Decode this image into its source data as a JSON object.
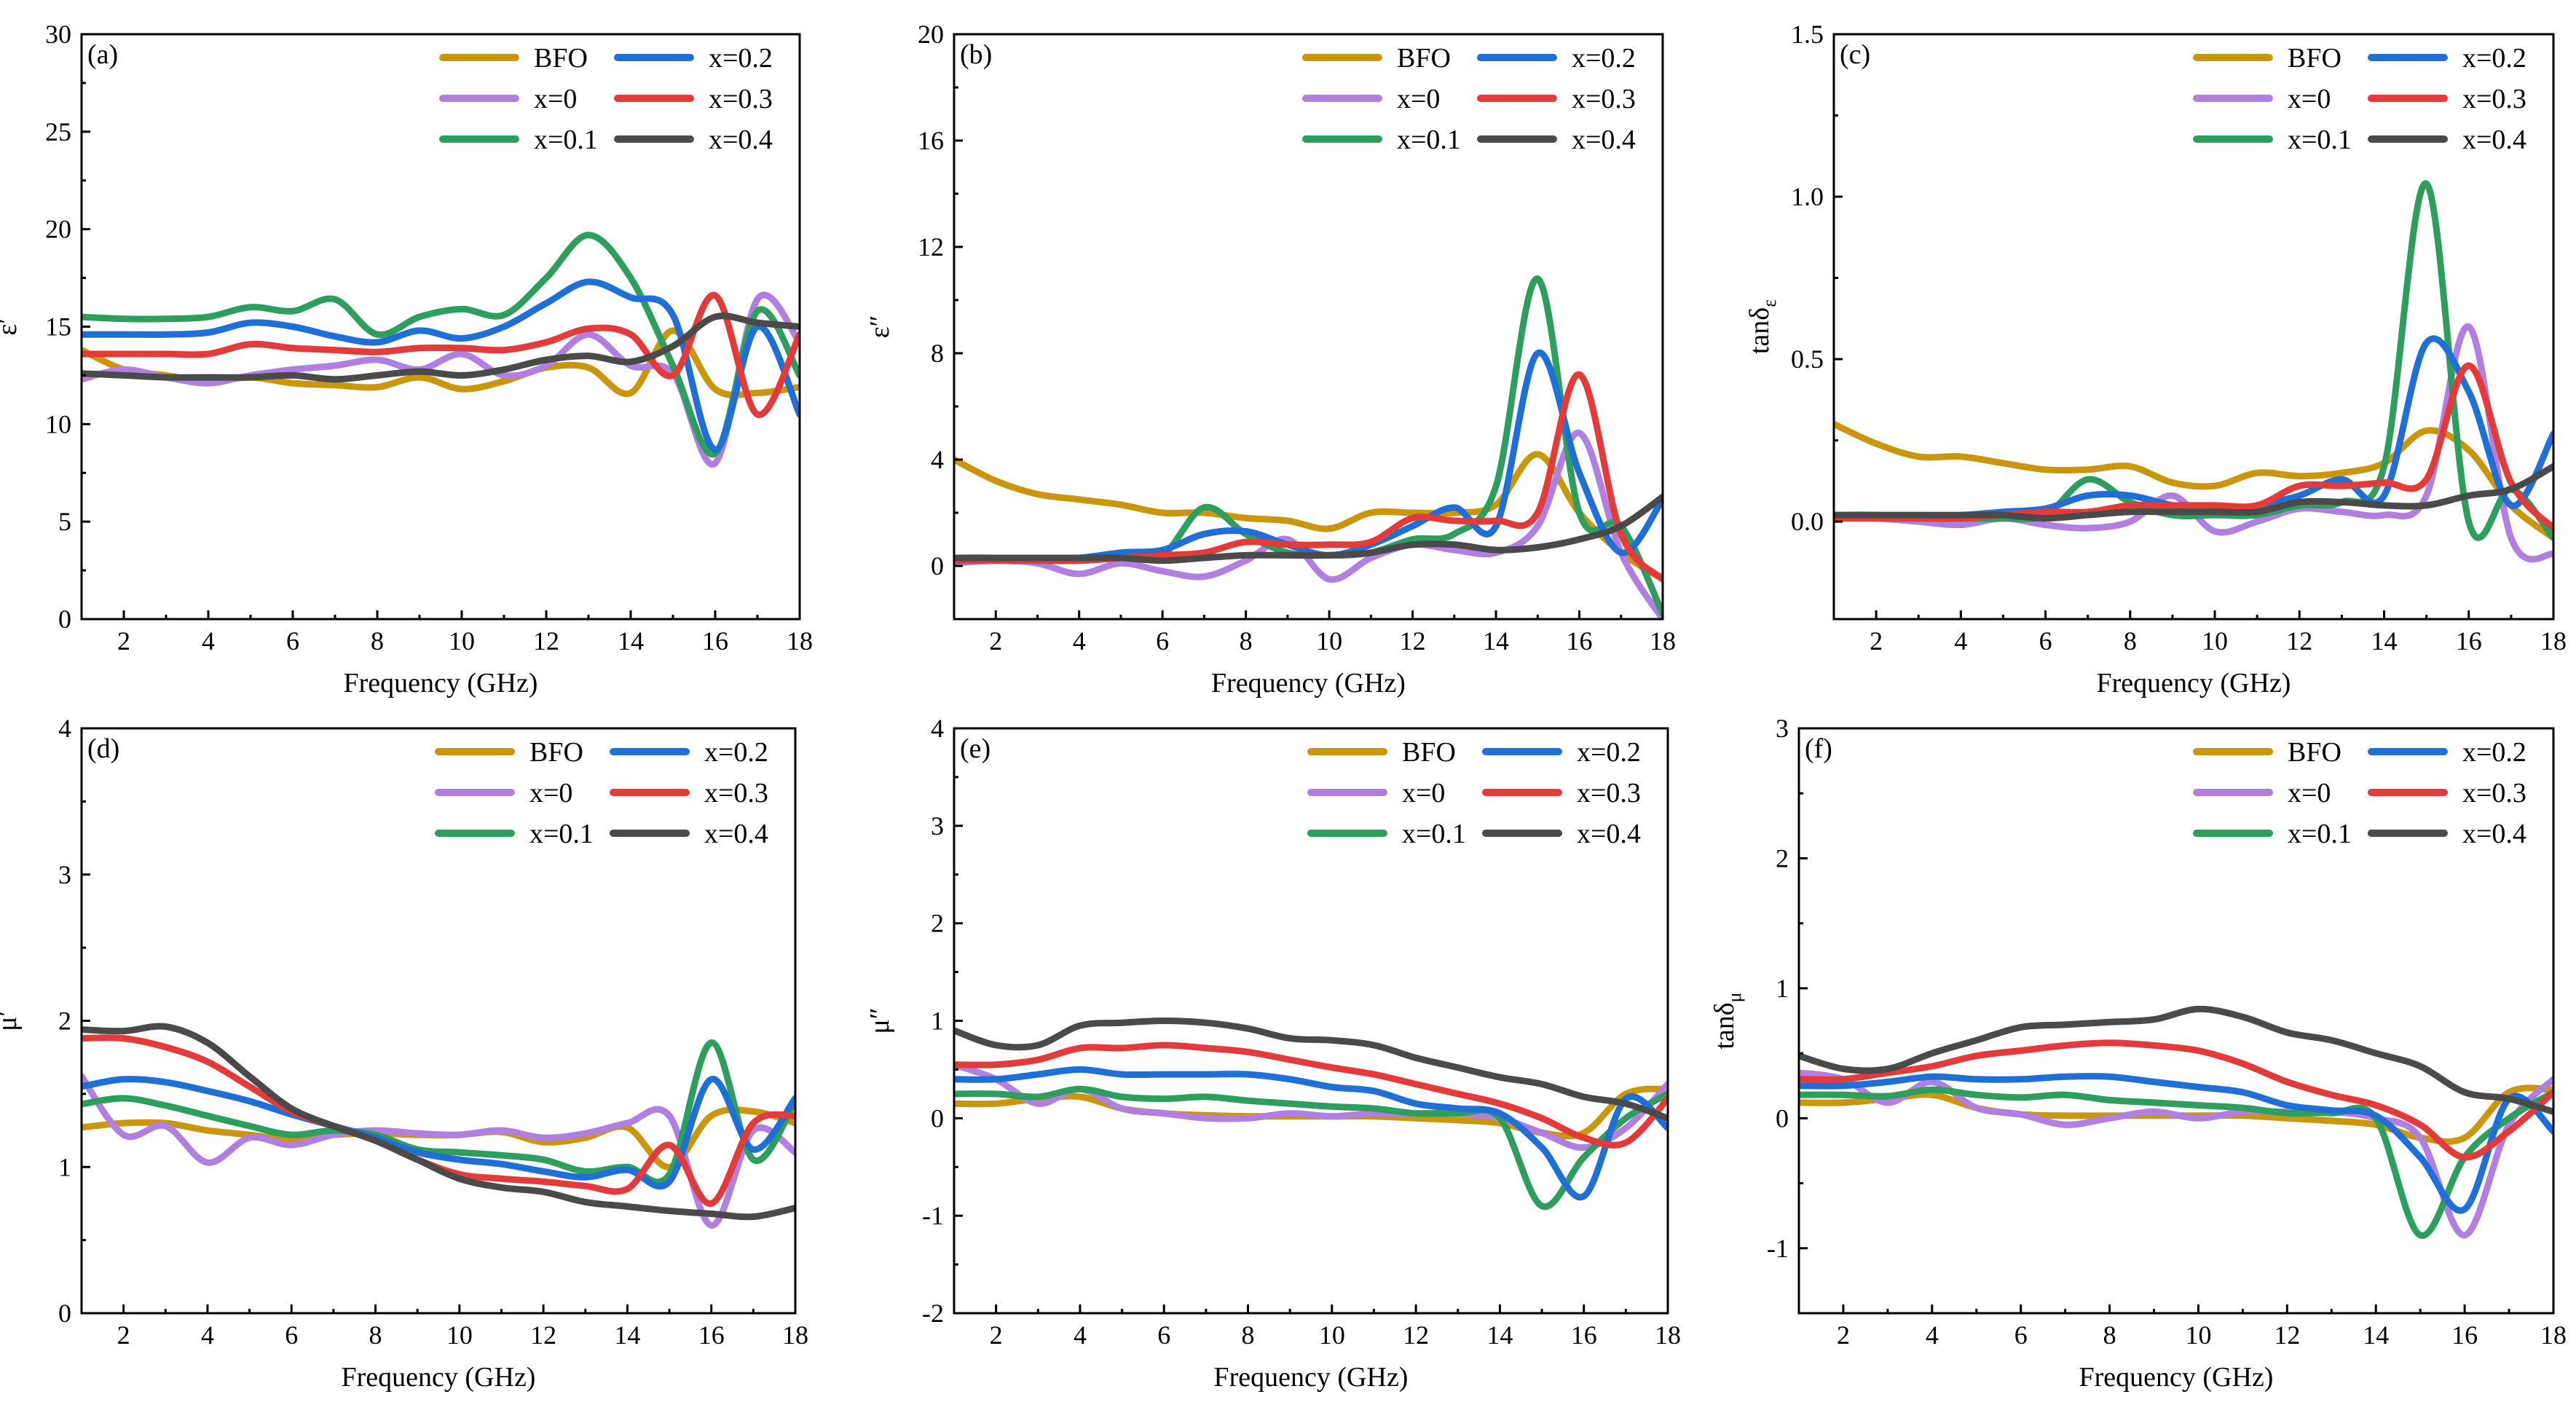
{
  "colors": {
    "BFO": "#c9960e",
    "x=0": "#b07fe0",
    "x=0.1": "#2e9e5e",
    "x=0.2": "#1f6fd6",
    "x=0.3": "#e33a3a",
    "x=0.4": "#4a4a4a"
  },
  "chart_data": [
    {
      "type": "line",
      "panel": "(a)",
      "xlabel": "Frequency (GHz)",
      "ylabel": "ε′",
      "xlim": [
        1,
        18
      ],
      "ylim": [
        0,
        30
      ],
      "xticks": [
        2,
        4,
        6,
        8,
        10,
        12,
        14,
        16,
        18
      ],
      "yticks": [
        0,
        5,
        10,
        15,
        20,
        25,
        30
      ],
      "legend": [
        "BFO",
        "x=0.2",
        "x=0",
        "x=0.3",
        "x=0.1",
        "x=0.4"
      ],
      "x": [
        1,
        2,
        3,
        4,
        5,
        6,
        7,
        8,
        9,
        10,
        11,
        12,
        13,
        14,
        15,
        16,
        17,
        18
      ],
      "series": [
        {
          "name": "BFO",
          "values": [
            13.8,
            12.8,
            12.5,
            12.2,
            12.4,
            12.1,
            12.0,
            11.9,
            12.4,
            11.8,
            12.2,
            12.9,
            12.9,
            11.6,
            14.8,
            11.8,
            11.6,
            11.9
          ]
        },
        {
          "name": "x=0",
          "values": [
            12.3,
            12.8,
            12.4,
            12.1,
            12.5,
            12.8,
            13.0,
            13.3,
            12.8,
            13.6,
            12.5,
            13.0,
            14.6,
            13.0,
            12.6,
            8.0,
            16.4,
            14.2
          ]
        },
        {
          "name": "x=0.1",
          "values": [
            15.5,
            15.4,
            15.4,
            15.5,
            16.0,
            15.8,
            16.4,
            14.6,
            15.5,
            15.9,
            15.6,
            17.5,
            19.7,
            17.5,
            13.0,
            8.5,
            15.8,
            12.5
          ]
        },
        {
          "name": "x=0.2",
          "values": [
            14.6,
            14.6,
            14.6,
            14.7,
            15.2,
            15.0,
            14.5,
            14.2,
            14.8,
            14.4,
            15.0,
            16.2,
            17.3,
            16.5,
            15.6,
            8.7,
            15.0,
            10.5
          ]
        },
        {
          "name": "x=0.3",
          "values": [
            13.6,
            13.6,
            13.6,
            13.6,
            14.1,
            13.9,
            13.8,
            13.7,
            13.9,
            13.9,
            13.8,
            14.2,
            14.9,
            14.6,
            12.5,
            16.6,
            10.5,
            14.6
          ]
        },
        {
          "name": "x=0.4",
          "values": [
            12.6,
            12.5,
            12.4,
            12.4,
            12.4,
            12.5,
            12.3,
            12.5,
            12.7,
            12.5,
            12.8,
            13.3,
            13.5,
            13.2,
            14.0,
            15.5,
            15.2,
            15.0
          ]
        }
      ]
    },
    {
      "type": "line",
      "panel": "(b)",
      "xlabel": "Frequency (GHz)",
      "ylabel": "ε″",
      "xlim": [
        1,
        18
      ],
      "ylim": [
        -2,
        20
      ],
      "xticks": [
        2,
        4,
        6,
        8,
        10,
        12,
        14,
        16,
        18
      ],
      "yticks": [
        0,
        4,
        8,
        12,
        16,
        20
      ],
      "legend": [
        "BFO",
        "x=0.2",
        "x=0",
        "x=0.3",
        "x=0.1",
        "x=0.4"
      ],
      "x": [
        1,
        2,
        3,
        4,
        5,
        6,
        7,
        8,
        9,
        10,
        11,
        12,
        13,
        14,
        15,
        16,
        17,
        18
      ],
      "series": [
        {
          "name": "BFO",
          "values": [
            4.0,
            3.2,
            2.7,
            2.5,
            2.3,
            2.0,
            2.0,
            1.8,
            1.7,
            1.4,
            2.0,
            2.0,
            2.0,
            2.3,
            4.2,
            2.0,
            0.5,
            -0.5
          ]
        },
        {
          "name": "x=0",
          "values": [
            0.1,
            0.2,
            0.1,
            -0.3,
            0.1,
            -0.2,
            -0.4,
            0.2,
            1.0,
            -0.5,
            0.3,
            0.8,
            0.6,
            0.5,
            1.5,
            5.0,
            0.5,
            -2.0
          ]
        },
        {
          "name": "x=0.1",
          "values": [
            0.3,
            0.3,
            0.2,
            0.2,
            0.3,
            0.4,
            2.2,
            1.2,
            0.5,
            0.4,
            0.5,
            1.0,
            1.2,
            3.0,
            10.8,
            2.0,
            1.5,
            -1.8
          ]
        },
        {
          "name": "x=0.2",
          "values": [
            0.3,
            0.3,
            0.3,
            0.3,
            0.5,
            0.6,
            1.2,
            1.3,
            0.8,
            0.4,
            0.8,
            1.5,
            2.2,
            1.5,
            8.0,
            3.5,
            0.5,
            2.5
          ]
        },
        {
          "name": "x=0.3",
          "values": [
            0.2,
            0.2,
            0.2,
            0.2,
            0.3,
            0.4,
            0.5,
            0.9,
            0.8,
            0.8,
            0.9,
            1.8,
            1.7,
            1.7,
            2.0,
            7.2,
            1.2,
            -0.5
          ]
        },
        {
          "name": "x=0.4",
          "values": [
            0.3,
            0.3,
            0.3,
            0.3,
            0.3,
            0.2,
            0.3,
            0.4,
            0.4,
            0.4,
            0.5,
            0.8,
            0.8,
            0.6,
            0.7,
            1.0,
            1.5,
            2.6
          ]
        }
      ]
    },
    {
      "type": "line",
      "panel": "(c)",
      "xlabel": "Frequency (GHz)",
      "ylabel": "tanδε",
      "xlim": [
        1,
        18
      ],
      "ylim": [
        -0.3,
        1.5
      ],
      "xticks": [
        2,
        4,
        6,
        8,
        10,
        12,
        14,
        16,
        18
      ],
      "yticks": [
        0.0,
        0.5,
        1.0,
        1.5
      ],
      "legend": [
        "BFO",
        "x=0.2",
        "x=0",
        "x=0.3",
        "x=0.1",
        "x=0.4"
      ],
      "x": [
        1,
        2,
        3,
        4,
        5,
        6,
        7,
        8,
        9,
        10,
        11,
        12,
        13,
        14,
        15,
        16,
        17,
        18
      ],
      "series": [
        {
          "name": "BFO",
          "values": [
            0.3,
            0.24,
            0.2,
            0.2,
            0.18,
            0.16,
            0.16,
            0.17,
            0.12,
            0.11,
            0.15,
            0.14,
            0.15,
            0.18,
            0.28,
            0.22,
            0.05,
            -0.05
          ]
        },
        {
          "name": "x=0",
          "values": [
            0.01,
            0.01,
            0.0,
            -0.01,
            0.01,
            -0.01,
            -0.02,
            0.0,
            0.08,
            -0.03,
            0.0,
            0.04,
            0.03,
            0.02,
            0.08,
            0.6,
            -0.05,
            -0.1
          ]
        },
        {
          "name": "x=0.1",
          "values": [
            0.02,
            0.02,
            0.01,
            0.01,
            0.01,
            0.02,
            0.13,
            0.06,
            0.02,
            0.02,
            0.02,
            0.05,
            0.06,
            0.17,
            1.04,
            0.0,
            0.1,
            -0.05
          ]
        },
        {
          "name": "x=0.2",
          "values": [
            0.02,
            0.02,
            0.02,
            0.02,
            0.03,
            0.04,
            0.08,
            0.08,
            0.05,
            0.03,
            0.05,
            0.08,
            0.13,
            0.08,
            0.55,
            0.4,
            0.05,
            0.27
          ]
        },
        {
          "name": "x=0.3",
          "values": [
            0.01,
            0.01,
            0.01,
            0.01,
            0.02,
            0.03,
            0.03,
            0.05,
            0.05,
            0.05,
            0.05,
            0.11,
            0.11,
            0.12,
            0.13,
            0.48,
            0.12,
            -0.02
          ]
        },
        {
          "name": "x=0.4",
          "values": [
            0.02,
            0.02,
            0.02,
            0.02,
            0.02,
            0.01,
            0.02,
            0.03,
            0.03,
            0.03,
            0.03,
            0.06,
            0.06,
            0.05,
            0.05,
            0.08,
            0.1,
            0.17
          ]
        }
      ]
    },
    {
      "type": "line",
      "panel": "(d)",
      "xlabel": "Frequency (GHz)",
      "ylabel": "μ′",
      "xlim": [
        1,
        18
      ],
      "ylim": [
        0,
        4
      ],
      "xticks": [
        2,
        4,
        6,
        8,
        10,
        12,
        14,
        16,
        18
      ],
      "yticks": [
        0,
        1,
        2,
        3,
        4
      ],
      "legend": [
        "BFO",
        "x=0.2",
        "x=0",
        "x=0.3",
        "x=0.1",
        "x=0.4"
      ],
      "x": [
        1,
        2,
        3,
        4,
        5,
        6,
        7,
        8,
        9,
        10,
        11,
        12,
        13,
        14,
        15,
        16,
        17,
        18
      ],
      "series": [
        {
          "name": "BFO",
          "values": [
            1.27,
            1.3,
            1.3,
            1.25,
            1.22,
            1.19,
            1.22,
            1.23,
            1.22,
            1.22,
            1.24,
            1.17,
            1.2,
            1.27,
            1.0,
            1.35,
            1.38,
            1.3
          ]
        },
        {
          "name": "x=0",
          "values": [
            1.62,
            1.22,
            1.28,
            1.03,
            1.2,
            1.15,
            1.22,
            1.25,
            1.23,
            1.22,
            1.25,
            1.2,
            1.23,
            1.3,
            1.35,
            0.6,
            1.25,
            1.1
          ]
        },
        {
          "name": "x=0.1",
          "values": [
            1.43,
            1.47,
            1.42,
            1.35,
            1.28,
            1.22,
            1.25,
            1.22,
            1.12,
            1.1,
            1.08,
            1.05,
            0.97,
            1.0,
            0.95,
            1.85,
            1.05,
            1.45
          ]
        },
        {
          "name": "x=0.2",
          "values": [
            1.55,
            1.6,
            1.58,
            1.52,
            1.45,
            1.36,
            1.28,
            1.2,
            1.1,
            1.05,
            1.02,
            0.97,
            0.93,
            0.98,
            0.9,
            1.6,
            1.12,
            1.47
          ]
        },
        {
          "name": "x=0.3",
          "values": [
            1.88,
            1.88,
            1.82,
            1.72,
            1.55,
            1.38,
            1.28,
            1.18,
            1.05,
            0.95,
            0.92,
            0.9,
            0.87,
            0.85,
            1.15,
            0.75,
            1.3,
            1.35
          ]
        },
        {
          "name": "x=0.4",
          "values": [
            1.94,
            1.93,
            1.96,
            1.85,
            1.62,
            1.4,
            1.28,
            1.18,
            1.05,
            0.92,
            0.86,
            0.83,
            0.76,
            0.73,
            0.7,
            0.68,
            0.66,
            0.72
          ]
        }
      ]
    },
    {
      "type": "line",
      "panel": "(e)",
      "xlabel": "Frequency (GHz)",
      "ylabel": "μ″",
      "xlim": [
        1,
        18
      ],
      "ylim": [
        -2,
        4
      ],
      "xticks": [
        2,
        4,
        6,
        8,
        10,
        12,
        14,
        16,
        18
      ],
      "yticks": [
        -2,
        -1,
        0,
        1,
        2,
        3,
        4
      ],
      "legend": [
        "BFO",
        "x=0.2",
        "x=0",
        "x=0.3",
        "x=0.1",
        "x=0.4"
      ],
      "x": [
        1,
        2,
        3,
        4,
        5,
        6,
        7,
        8,
        9,
        10,
        11,
        12,
        13,
        14,
        15,
        16,
        17,
        18
      ],
      "series": [
        {
          "name": "BFO",
          "values": [
            0.15,
            0.15,
            0.2,
            0.22,
            0.1,
            0.05,
            0.03,
            0.02,
            0.02,
            0.02,
            0.02,
            0.0,
            -0.02,
            -0.05,
            -0.15,
            -0.15,
            0.25,
            0.3
          ]
        },
        {
          "name": "x=0",
          "values": [
            0.55,
            0.4,
            0.15,
            0.3,
            0.1,
            0.05,
            0.0,
            0.0,
            0.05,
            0.02,
            0.05,
            0.05,
            0.05,
            0.0,
            -0.15,
            -0.3,
            -0.1,
            0.35
          ]
        },
        {
          "name": "x=0.1",
          "values": [
            0.25,
            0.25,
            0.22,
            0.3,
            0.22,
            0.2,
            0.22,
            0.18,
            0.15,
            0.12,
            0.1,
            0.05,
            0.05,
            0.0,
            -0.9,
            -0.4,
            0.0,
            0.25
          ]
        },
        {
          "name": "x=0.2",
          "values": [
            0.4,
            0.4,
            0.45,
            0.5,
            0.45,
            0.45,
            0.45,
            0.45,
            0.4,
            0.32,
            0.28,
            0.15,
            0.1,
            0.05,
            -0.3,
            -0.8,
            0.2,
            -0.1
          ]
        },
        {
          "name": "x=0.3",
          "values": [
            0.55,
            0.55,
            0.6,
            0.72,
            0.72,
            0.75,
            0.72,
            0.68,
            0.6,
            0.52,
            0.45,
            0.35,
            0.25,
            0.15,
            0.0,
            -0.2,
            -0.25,
            0.2
          ]
        },
        {
          "name": "x=0.4",
          "values": [
            0.9,
            0.75,
            0.75,
            0.95,
            0.98,
            1.0,
            0.98,
            0.92,
            0.82,
            0.8,
            0.75,
            0.62,
            0.52,
            0.42,
            0.35,
            0.22,
            0.15,
            0.0
          ]
        }
      ]
    },
    {
      "type": "line",
      "panel": "(f)",
      "xlabel": "Frequency (GHz)",
      "ylabel": "tanδμ",
      "xlim": [
        1,
        18
      ],
      "ylim": [
        -1.5,
        3
      ],
      "xticks": [
        2,
        4,
        6,
        8,
        10,
        12,
        14,
        16,
        18
      ],
      "yticks": [
        -1,
        0,
        1,
        2,
        3
      ],
      "legend": [
        "BFO",
        "x=0.2",
        "x=0",
        "x=0.3",
        "x=0.1",
        "x=0.4"
      ],
      "x": [
        1,
        2,
        3,
        4,
        5,
        6,
        7,
        8,
        9,
        10,
        11,
        12,
        13,
        14,
        15,
        16,
        17,
        18
      ],
      "series": [
        {
          "name": "BFO",
          "values": [
            0.12,
            0.12,
            0.15,
            0.18,
            0.08,
            0.03,
            0.02,
            0.02,
            0.02,
            0.02,
            0.02,
            0.0,
            -0.02,
            -0.05,
            -0.15,
            -0.15,
            0.2,
            0.22
          ]
        },
        {
          "name": "x=0",
          "values": [
            0.35,
            0.3,
            0.12,
            0.28,
            0.08,
            0.03,
            -0.05,
            0.0,
            0.05,
            0.0,
            0.05,
            0.05,
            0.05,
            0.0,
            -0.15,
            -0.9,
            -0.05,
            0.3
          ]
        },
        {
          "name": "x=0.1",
          "values": [
            0.18,
            0.18,
            0.17,
            0.22,
            0.18,
            0.16,
            0.18,
            0.14,
            0.12,
            0.1,
            0.08,
            0.04,
            0.04,
            0.0,
            -0.9,
            -0.3,
            0.0,
            0.2
          ]
        },
        {
          "name": "x=0.2",
          "values": [
            0.25,
            0.25,
            0.28,
            0.32,
            0.3,
            0.3,
            0.32,
            0.32,
            0.28,
            0.24,
            0.2,
            0.1,
            0.06,
            0.02,
            -0.3,
            -0.7,
            0.15,
            -0.1
          ]
        },
        {
          "name": "x=0.3",
          "values": [
            0.3,
            0.3,
            0.35,
            0.4,
            0.48,
            0.52,
            0.56,
            0.58,
            0.56,
            0.52,
            0.42,
            0.28,
            0.18,
            0.1,
            -0.05,
            -0.3,
            -0.1,
            0.2
          ]
        },
        {
          "name": "x=0.4",
          "values": [
            0.48,
            0.38,
            0.38,
            0.5,
            0.6,
            0.7,
            0.72,
            0.74,
            0.76,
            0.84,
            0.78,
            0.66,
            0.6,
            0.5,
            0.4,
            0.2,
            0.15,
            0.05
          ]
        }
      ]
    }
  ]
}
